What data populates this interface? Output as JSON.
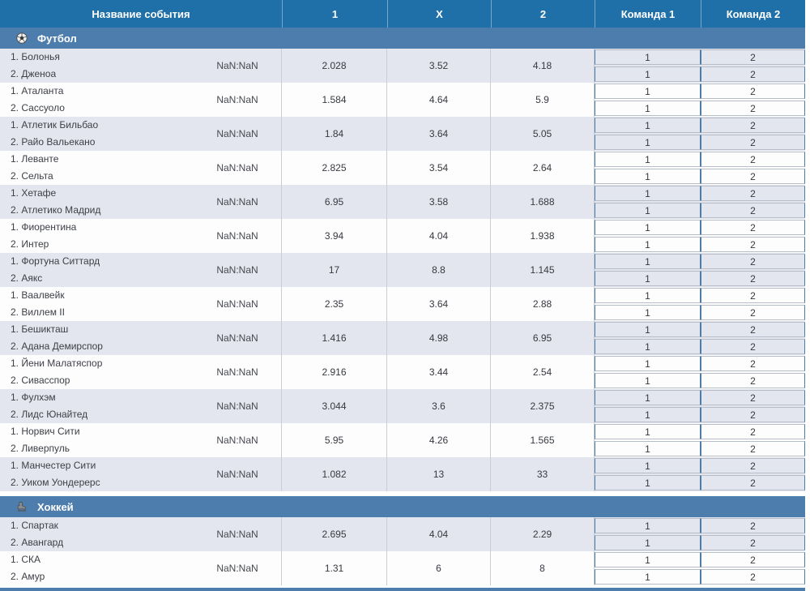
{
  "header": {
    "columns": [
      "Название события",
      "1",
      "X",
      "2",
      "Команда 1",
      "Команда 2"
    ]
  },
  "sections": [
    {
      "title": "Футбол",
      "icon": "football-icon",
      "events": [
        {
          "team1": "1. Болонья",
          "team2": "2. Дженоа",
          "score": "NaN:NaN",
          "odds_1": "2.028",
          "odds_x": "3.52",
          "odds_2": "4.18",
          "k1": "1",
          "k2": "2"
        },
        {
          "team1": "1. Аталанта",
          "team2": "2. Сассуоло",
          "score": "NaN:NaN",
          "odds_1": "1.584",
          "odds_x": "4.64",
          "odds_2": "5.9",
          "k1": "1",
          "k2": "2"
        },
        {
          "team1": "1. Атлетик Бильбао",
          "team2": "2. Райо Вальекано",
          "score": "NaN:NaN",
          "odds_1": "1.84",
          "odds_x": "3.64",
          "odds_2": "5.05",
          "k1": "1",
          "k2": "2"
        },
        {
          "team1": "1. Леванте",
          "team2": "2. Сельта",
          "score": "NaN:NaN",
          "odds_1": "2.825",
          "odds_x": "3.54",
          "odds_2": "2.64",
          "k1": "1",
          "k2": "2"
        },
        {
          "team1": "1. Хетафе",
          "team2": "2. Атлетико Мадрид",
          "score": "NaN:NaN",
          "odds_1": "6.95",
          "odds_x": "3.58",
          "odds_2": "1.688",
          "k1": "1",
          "k2": "2"
        },
        {
          "team1": "1. Фиорентина",
          "team2": "2. Интер",
          "score": "NaN:NaN",
          "odds_1": "3.94",
          "odds_x": "4.04",
          "odds_2": "1.938",
          "k1": "1",
          "k2": "2"
        },
        {
          "team1": "1. Фортуна Ситтард",
          "team2": "2. Аякс",
          "score": "NaN:NaN",
          "odds_1": "17",
          "odds_x": "8.8",
          "odds_2": "1.145",
          "k1": "1",
          "k2": "2"
        },
        {
          "team1": "1. Ваалвейк",
          "team2": "2. Виллем II",
          "score": "NaN:NaN",
          "odds_1": "2.35",
          "odds_x": "3.64",
          "odds_2": "2.88",
          "k1": "1",
          "k2": "2"
        },
        {
          "team1": "1. Бешикташ",
          "team2": "2. Адана Демирспор",
          "score": "NaN:NaN",
          "odds_1": "1.416",
          "odds_x": "4.98",
          "odds_2": "6.95",
          "k1": "1",
          "k2": "2"
        },
        {
          "team1": "1. Йени Малатяспор",
          "team2": "2. Сивасспор",
          "score": "NaN:NaN",
          "odds_1": "2.916",
          "odds_x": "3.44",
          "odds_2": "2.54",
          "k1": "1",
          "k2": "2"
        },
        {
          "team1": "1. Фулхэм",
          "team2": "2. Лидс Юнайтед",
          "score": "NaN:NaN",
          "odds_1": "3.044",
          "odds_x": "3.6",
          "odds_2": "2.375",
          "k1": "1",
          "k2": "2"
        },
        {
          "team1": "1. Норвич Сити",
          "team2": "2. Ливерпуль",
          "score": "NaN:NaN",
          "odds_1": "5.95",
          "odds_x": "4.26",
          "odds_2": "1.565",
          "k1": "1",
          "k2": "2"
        },
        {
          "team1": "1. Манчестер Сити",
          "team2": "2. Уиком Уондерерс",
          "score": "NaN:NaN",
          "odds_1": "1.082",
          "odds_x": "13",
          "odds_2": "33",
          "k1": "1",
          "k2": "2"
        }
      ]
    },
    {
      "title": "Хоккей",
      "icon": "hockey-skate-icon",
      "events": [
        {
          "team1": "1. Спартак",
          "team2": "2. Авангард",
          "score": "NaN:NaN",
          "odds_1": "2.695",
          "odds_x": "4.04",
          "odds_2": "2.29",
          "k1": "1",
          "k2": "2"
        },
        {
          "team1": "1. СКА",
          "team2": "2. Амур",
          "score": "NaN:NaN",
          "odds_1": "1.31",
          "odds_x": "6",
          "odds_2": "8",
          "k1": "1",
          "k2": "2"
        }
      ]
    }
  ],
  "colors": {
    "header_background": "#1f6fa8",
    "section_background": "#4d7dad",
    "row_alt_background": "#e4e6ef",
    "row_plain_background": "#fdfdfe",
    "grid_line": "#c9cdd6",
    "bet_cell_border_vertical": "#4f7ba7",
    "bet_cell_border_horizontal": "#b6bdc8",
    "header_text": "#ffffff",
    "body_text": "#3d4046"
  }
}
